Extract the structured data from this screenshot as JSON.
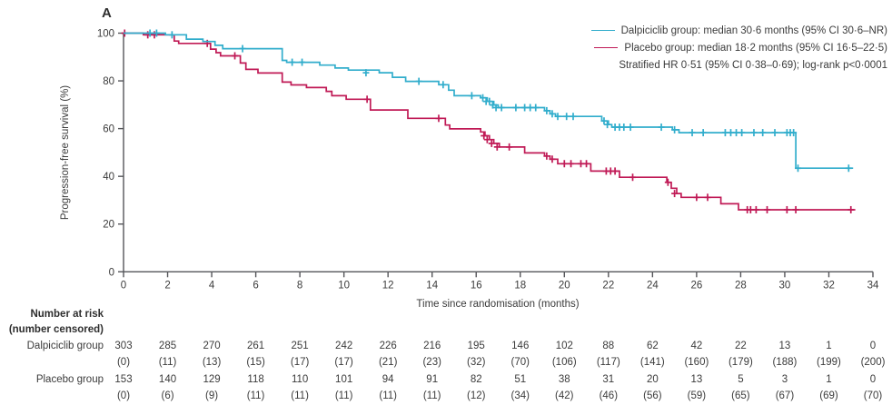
{
  "chart_data": {
    "type": "line",
    "subtype": "kaplan-meier-step",
    "panel_label": "A",
    "xlabel": "Time since randomisation (months)",
    "ylabel": "Progression-free survival (%)",
    "xlim": [
      0,
      34
    ],
    "ylim": [
      0,
      100
    ],
    "xticks": [
      0,
      2,
      4,
      6,
      8,
      10,
      12,
      14,
      16,
      18,
      20,
      22,
      24,
      26,
      28,
      30,
      32,
      34
    ],
    "yticks": [
      0,
      20,
      40,
      60,
      80,
      100
    ],
    "grid": false,
    "axis_color": "#55565a",
    "text_color": "#3b3b3b",
    "legend_position": "top-right",
    "series": [
      {
        "name": "Placebo group",
        "color": "#c01a56",
        "end_time": 33.2,
        "steps": [
          [
            0,
            100
          ],
          [
            0.9,
            99.3
          ],
          [
            2.3,
            96.7
          ],
          [
            2.5,
            95.7
          ],
          [
            3.95,
            93.3
          ],
          [
            4.2,
            91.8
          ],
          [
            4.4,
            90.5
          ],
          [
            5.3,
            87.5
          ],
          [
            5.55,
            84.8
          ],
          [
            6.1,
            83.3
          ],
          [
            7.2,
            79.5
          ],
          [
            7.6,
            78.3
          ],
          [
            8.3,
            77.2
          ],
          [
            9.2,
            75.6
          ],
          [
            9.45,
            73.8
          ],
          [
            10.1,
            72.3
          ],
          [
            11.2,
            67.8
          ],
          [
            12.9,
            64.3
          ],
          [
            14.6,
            61.5
          ],
          [
            14.8,
            59.9
          ],
          [
            16.2,
            58.6
          ],
          [
            16.4,
            57.0
          ],
          [
            16.6,
            55.4
          ],
          [
            16.8,
            53.8
          ],
          [
            17.05,
            52.3
          ],
          [
            18.2,
            49.8
          ],
          [
            19.1,
            48.5
          ],
          [
            19.35,
            47.2
          ],
          [
            19.7,
            45.3
          ],
          [
            21.2,
            42.2
          ],
          [
            22.5,
            39.6
          ],
          [
            24.65,
            37.5
          ],
          [
            24.85,
            35.0
          ],
          [
            25.1,
            32.8
          ],
          [
            25.3,
            31.2
          ],
          [
            27.1,
            28.5
          ],
          [
            27.9,
            26.0
          ]
        ],
        "censors": [
          [
            0.05,
            100
          ],
          [
            1.1,
            99.3
          ],
          [
            1.4,
            99.3
          ],
          [
            3.8,
            95.7
          ],
          [
            5.05,
            90.5
          ],
          [
            11.05,
            72.3
          ],
          [
            14.3,
            64.3
          ],
          [
            16.35,
            57.0
          ],
          [
            16.5,
            55.4
          ],
          [
            16.7,
            53.8
          ],
          [
            16.95,
            52.3
          ],
          [
            17.5,
            52.3
          ],
          [
            19.2,
            48.5
          ],
          [
            19.45,
            47.2
          ],
          [
            20.0,
            45.3
          ],
          [
            20.3,
            45.3
          ],
          [
            20.75,
            45.3
          ],
          [
            21.0,
            45.3
          ],
          [
            21.9,
            42.2
          ],
          [
            22.1,
            42.2
          ],
          [
            22.3,
            42.2
          ],
          [
            23.1,
            39.6
          ],
          [
            24.7,
            37.5
          ],
          [
            25.0,
            32.8
          ],
          [
            26.0,
            31.2
          ],
          [
            26.5,
            31.2
          ],
          [
            28.3,
            26.0
          ],
          [
            28.45,
            26.0
          ],
          [
            28.7,
            26.0
          ],
          [
            29.2,
            26.0
          ],
          [
            30.1,
            26.0
          ],
          [
            30.5,
            26.0
          ],
          [
            33.0,
            26.0
          ]
        ]
      },
      {
        "name": "Dalpiciclib group",
        "color": "#31adcc",
        "end_time": 33.1,
        "steps": [
          [
            0,
            100
          ],
          [
            1.9,
            99.3
          ],
          [
            2.85,
            97.5
          ],
          [
            3.6,
            96.5
          ],
          [
            4.15,
            94.9
          ],
          [
            4.5,
            93.5
          ],
          [
            7.2,
            88.6
          ],
          [
            7.4,
            87.8
          ],
          [
            8.9,
            86.6
          ],
          [
            9.6,
            85.4
          ],
          [
            10.2,
            84.5
          ],
          [
            11.6,
            83.4
          ],
          [
            12.2,
            81.5
          ],
          [
            12.8,
            79.8
          ],
          [
            14.3,
            78.4
          ],
          [
            14.75,
            76.1
          ],
          [
            15.0,
            73.8
          ],
          [
            16.2,
            72.9
          ],
          [
            16.5,
            71.4
          ],
          [
            16.8,
            69.9
          ],
          [
            17.0,
            68.8
          ],
          [
            19.1,
            67.5
          ],
          [
            19.35,
            66.2
          ],
          [
            19.6,
            65.1
          ],
          [
            21.7,
            63.2
          ],
          [
            22.0,
            61.7
          ],
          [
            22.15,
            60.6
          ],
          [
            24.9,
            59.5
          ],
          [
            25.2,
            58.3
          ],
          [
            30.5,
            43.4
          ]
        ],
        "censors": [
          [
            1.2,
            100
          ],
          [
            1.5,
            100
          ],
          [
            2.2,
            99.3
          ],
          [
            5.4,
            93.5
          ],
          [
            7.65,
            87.8
          ],
          [
            8.1,
            87.8
          ],
          [
            11.0,
            83.4
          ],
          [
            13.4,
            79.8
          ],
          [
            14.5,
            78.4
          ],
          [
            15.8,
            73.8
          ],
          [
            16.3,
            72.9
          ],
          [
            16.45,
            71.4
          ],
          [
            16.6,
            71.4
          ],
          [
            16.75,
            69.9
          ],
          [
            16.9,
            68.8
          ],
          [
            17.15,
            68.8
          ],
          [
            17.8,
            68.8
          ],
          [
            18.2,
            68.8
          ],
          [
            18.45,
            68.8
          ],
          [
            18.7,
            68.8
          ],
          [
            19.2,
            67.5
          ],
          [
            19.45,
            66.2
          ],
          [
            19.7,
            65.1
          ],
          [
            20.1,
            65.1
          ],
          [
            20.4,
            65.1
          ],
          [
            21.8,
            63.2
          ],
          [
            21.95,
            61.7
          ],
          [
            22.3,
            60.6
          ],
          [
            22.5,
            60.6
          ],
          [
            22.7,
            60.6
          ],
          [
            23.0,
            60.6
          ],
          [
            24.4,
            60.6
          ],
          [
            25.0,
            59.5
          ],
          [
            25.8,
            58.3
          ],
          [
            26.3,
            58.3
          ],
          [
            27.3,
            58.3
          ],
          [
            27.55,
            58.3
          ],
          [
            27.8,
            58.3
          ],
          [
            28.05,
            58.3
          ],
          [
            28.6,
            58.3
          ],
          [
            29.0,
            58.3
          ],
          [
            29.55,
            58.3
          ],
          [
            30.1,
            58.3
          ],
          [
            30.25,
            58.3
          ],
          [
            30.4,
            58.3
          ],
          [
            30.6,
            43.4
          ],
          [
            32.9,
            43.4
          ]
        ]
      }
    ],
    "legend": [
      {
        "swatch": true,
        "color": "#31adcc",
        "text": "Dalpiciclib group: median 30·6 months (95% CI 30·6–NR)"
      },
      {
        "swatch": true,
        "color": "#c01a56",
        "text": "Placebo group: median 18·2 months (95% CI 16·5–22·5)"
      },
      {
        "swatch": false,
        "color": "",
        "text": "Stratified HR 0·51 (95% CI 0·38–0·69); log-rank p<0·0001"
      }
    ]
  },
  "risk_table": {
    "header_line1": "Number at risk",
    "header_line2": "(number censored)",
    "months": [
      0,
      2,
      4,
      6,
      8,
      10,
      12,
      14,
      16,
      18,
      20,
      22,
      24,
      26,
      28,
      30,
      32,
      34
    ],
    "rows": [
      {
        "label": "Dalpiciclib group",
        "counts": [
          "303",
          "285",
          "270",
          "261",
          "251",
          "242",
          "226",
          "216",
          "195",
          "146",
          "102",
          "88",
          "62",
          "42",
          "22",
          "13",
          "1",
          "0"
        ],
        "censored": [
          "(0)",
          "(11)",
          "(13)",
          "(15)",
          "(17)",
          "(17)",
          "(21)",
          "(23)",
          "(32)",
          "(70)",
          "(106)",
          "(117)",
          "(141)",
          "(160)",
          "(179)",
          "(188)",
          "(199)",
          "(200)"
        ]
      },
      {
        "label": "Placebo group",
        "counts": [
          "153",
          "140",
          "129",
          "118",
          "110",
          "101",
          "94",
          "91",
          "82",
          "51",
          "38",
          "31",
          "20",
          "13",
          "5",
          "3",
          "1",
          "0"
        ],
        "censored": [
          "(0)",
          "(6)",
          "(9)",
          "(11)",
          "(11)",
          "(11)",
          "(11)",
          "(11)",
          "(12)",
          "(34)",
          "(42)",
          "(46)",
          "(56)",
          "(59)",
          "(65)",
          "(67)",
          "(69)",
          "(70)"
        ]
      }
    ]
  }
}
